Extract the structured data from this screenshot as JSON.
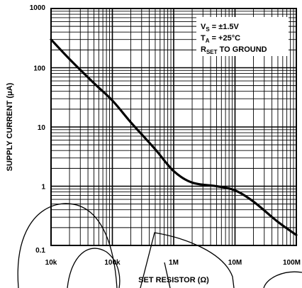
{
  "chart_data": {
    "type": "line",
    "xlabel": "SET RESISTOR (Ω)",
    "ylabel": "SUPPLY CURRENT (μA)",
    "x_scale": "log",
    "y_scale": "log",
    "xlim": [
      10000,
      100000000
    ],
    "ylim": [
      0.1,
      1000
    ],
    "x_ticks": [
      {
        "value": 10000,
        "label": "10k"
      },
      {
        "value": 100000,
        "label": "100k"
      },
      {
        "value": 1000000,
        "label": "1M"
      },
      {
        "value": 10000000,
        "label": "10M"
      },
      {
        "value": 100000000,
        "label": "100M"
      }
    ],
    "y_ticks": [
      {
        "value": 0.1,
        "label": "0.1"
      },
      {
        "value": 1,
        "label": "1"
      },
      {
        "value": 10,
        "label": "10"
      },
      {
        "value": 100,
        "label": "100"
      },
      {
        "value": 1000,
        "label": "1000"
      }
    ],
    "grid": true,
    "legend": {
      "position": "top-right",
      "lines": [
        {
          "main": "V",
          "sub": "S",
          "rest": " = ±1.5V"
        },
        {
          "main": "T",
          "sub": "A",
          "rest": " = +25°C"
        },
        {
          "main": "R",
          "sub": "SET",
          "rest": " TO GROUND"
        }
      ]
    },
    "series": [
      {
        "x": [
          10000,
          20000,
          50000,
          100000,
          200000,
          500000,
          1000000,
          2000000,
          5000000,
          10000000,
          20000000,
          50000000,
          100000000
        ],
        "y": [
          300,
          140,
          55,
          28,
          12,
          4.2,
          1.8,
          1.15,
          1.0,
          0.85,
          0.55,
          0.25,
          0.15
        ]
      }
    ]
  }
}
